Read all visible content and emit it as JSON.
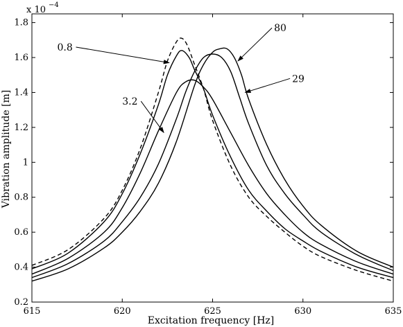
{
  "chart_data": {
    "type": "line",
    "xlabel": "Excitation frequency [Hz]",
    "ylabel": "Vibration amplitude [m]",
    "y_exponent_label": "x 10",
    "y_exponent_power": "−4",
    "xlim": [
      615,
      635
    ],
    "ylim": [
      0.2,
      1.85
    ],
    "x_ticks": [
      "615",
      "620",
      "625",
      "630",
      "635"
    ],
    "x_tick_values": [
      615,
      620,
      625,
      630,
      635
    ],
    "y_ticks": [
      "0.2",
      "0.4",
      "0.6",
      "0.8",
      "1",
      "1.2",
      "1.4",
      "1.6",
      "1.8"
    ],
    "y_tick_values": [
      0.2,
      0.4,
      0.6,
      0.8,
      1.0,
      1.2,
      1.4,
      1.6,
      1.8
    ],
    "grid": false,
    "series": [
      {
        "dash": true,
        "x": [
          615,
          617,
          619,
          620,
          621,
          622,
          622.5,
          623,
          623.3,
          623.6,
          624,
          624.5,
          625,
          626,
          627,
          628,
          629,
          630,
          631,
          633,
          635
        ],
        "y": [
          0.41,
          0.5,
          0.68,
          0.84,
          1.08,
          1.4,
          1.58,
          1.69,
          1.71,
          1.67,
          1.56,
          1.42,
          1.24,
          0.98,
          0.8,
          0.69,
          0.6,
          0.52,
          0.46,
          0.38,
          0.32
        ]
      },
      {
        "dash": false,
        "x": [
          615,
          617,
          619,
          620,
          621,
          622,
          622.5,
          623,
          623.3,
          623.7,
          624,
          624.5,
          625,
          626,
          627,
          628,
          629,
          630,
          631,
          633,
          635
        ],
        "y": [
          0.39,
          0.48,
          0.66,
          0.82,
          1.05,
          1.33,
          1.5,
          1.61,
          1.64,
          1.6,
          1.53,
          1.42,
          1.27,
          1.03,
          0.84,
          0.72,
          0.62,
          0.55,
          0.49,
          0.4,
          0.34
        ]
      },
      {
        "dash": false,
        "x": [
          615,
          617,
          619,
          620,
          621,
          622,
          623,
          623.5,
          624,
          624.5,
          625,
          626,
          627,
          628,
          629,
          630,
          631,
          633,
          635
        ],
        "y": [
          0.36,
          0.45,
          0.6,
          0.74,
          0.94,
          1.18,
          1.4,
          1.46,
          1.47,
          1.43,
          1.36,
          1.17,
          0.98,
          0.82,
          0.7,
          0.6,
          0.53,
          0.43,
          0.36
        ]
      },
      {
        "dash": false,
        "x": [
          615,
          617,
          619,
          620,
          621,
          622,
          623,
          623.5,
          624,
          624.5,
          625,
          625.5,
          626,
          626.5,
          627,
          628,
          629,
          630,
          631,
          633,
          635
        ],
        "y": [
          0.34,
          0.42,
          0.55,
          0.66,
          0.8,
          0.99,
          1.25,
          1.4,
          1.52,
          1.6,
          1.62,
          1.6,
          1.52,
          1.37,
          1.22,
          0.98,
          0.82,
          0.7,
          0.6,
          0.47,
          0.38
        ]
      },
      {
        "dash": false,
        "x": [
          615,
          617,
          619,
          620,
          621,
          622,
          623,
          624,
          624.5,
          625,
          625.4,
          625.8,
          626.2,
          626.6,
          627,
          628,
          629,
          630,
          631,
          633,
          635
        ],
        "y": [
          0.32,
          0.39,
          0.51,
          0.6,
          0.72,
          0.88,
          1.12,
          1.44,
          1.56,
          1.63,
          1.65,
          1.65,
          1.6,
          1.5,
          1.36,
          1.1,
          0.9,
          0.75,
          0.64,
          0.49,
          0.4
        ]
      }
    ],
    "annotations": [
      {
        "text": "0.8",
        "text_x": 616.4,
        "text_y": 1.64,
        "tip_x": 622.6,
        "tip_y": 1.57
      },
      {
        "text": "80",
        "text_x": 628.4,
        "text_y": 1.75,
        "tip_x": 626.4,
        "tip_y": 1.58
      },
      {
        "text": "29",
        "text_x": 629.4,
        "text_y": 1.46,
        "tip_x": 626.8,
        "tip_y": 1.4
      },
      {
        "text": "3.2",
        "text_x": 620.0,
        "text_y": 1.33,
        "tip_x": 622.3,
        "tip_y": 1.17
      }
    ]
  }
}
